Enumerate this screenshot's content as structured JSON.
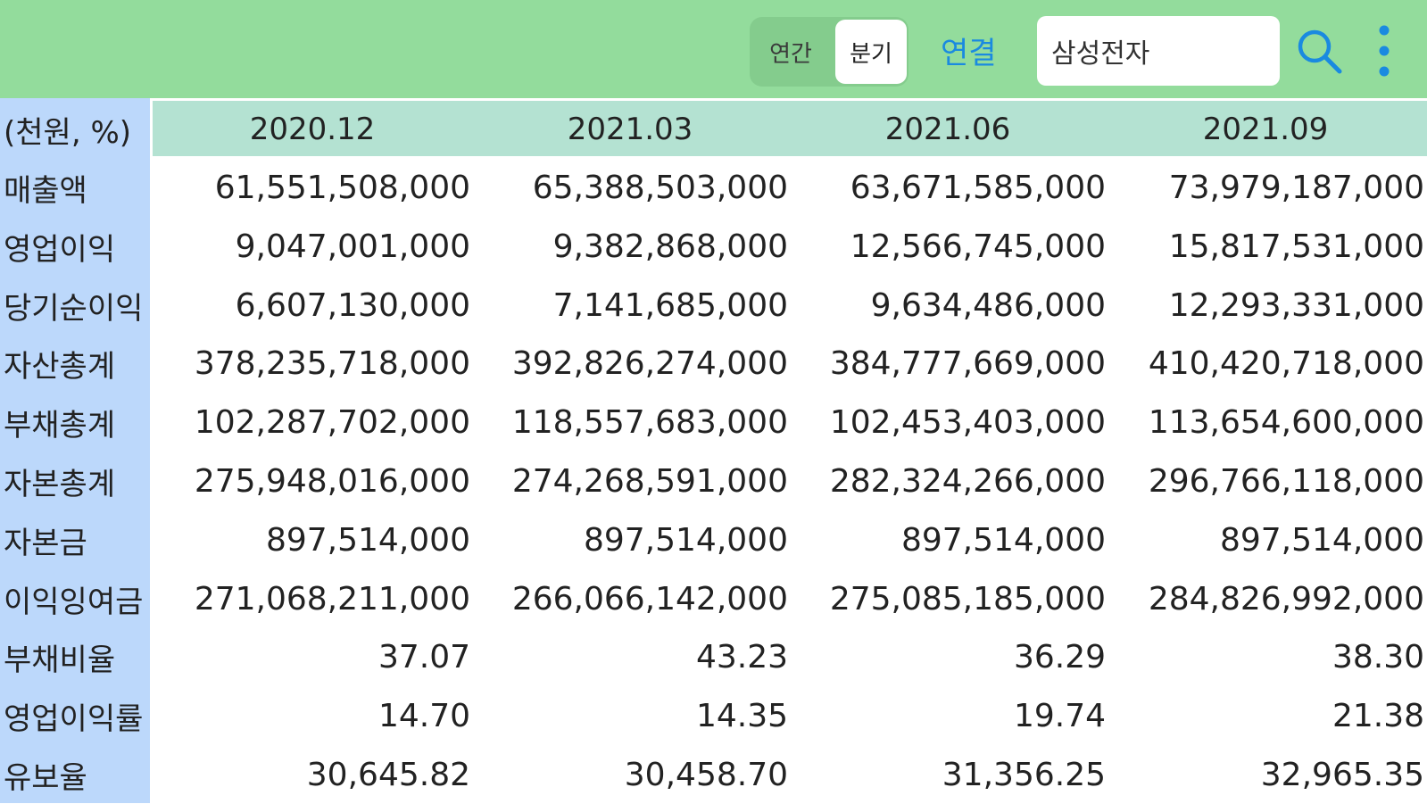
{
  "toolbar": {
    "annual_label": "연간",
    "quarter_label": "분기",
    "consolidated_label": "연결",
    "search_value": "삼성전자",
    "search_icon": "search-icon",
    "more_icon": "more-vertical-icon",
    "link_color": "#1a8ae0"
  },
  "table": {
    "unit_label": "(천원, %)",
    "periods": [
      "2020.12",
      "2021.03",
      "2021.06",
      "2021.09"
    ],
    "rows": [
      {
        "label": "매출액",
        "values": [
          "61,551,508,000",
          "65,388,503,000",
          "63,671,585,000",
          "73,979,187,000"
        ]
      },
      {
        "label": "영업이익",
        "values": [
          "9,047,001,000",
          "9,382,868,000",
          "12,566,745,000",
          "15,817,531,000"
        ]
      },
      {
        "label": "당기순이익",
        "values": [
          "6,607,130,000",
          "7,141,685,000",
          "9,634,486,000",
          "12,293,331,000"
        ]
      },
      {
        "label": "자산총계",
        "values": [
          "378,235,718,000",
          "392,826,274,000",
          "384,777,669,000",
          "410,420,718,000"
        ]
      },
      {
        "label": "부채총계",
        "values": [
          "102,287,702,000",
          "118,557,683,000",
          "102,453,403,000",
          "113,654,600,000"
        ]
      },
      {
        "label": "자본총계",
        "values": [
          "275,948,016,000",
          "274,268,591,000",
          "282,324,266,000",
          "296,766,118,000"
        ]
      },
      {
        "label": "자본금",
        "values": [
          "897,514,000",
          "897,514,000",
          "897,514,000",
          "897,514,000"
        ]
      },
      {
        "label": "이익잉여금",
        "values": [
          "271,068,211,000",
          "266,066,142,000",
          "275,085,185,000",
          "284,826,992,000"
        ]
      },
      {
        "label": "부채비율",
        "values": [
          "37.07",
          "43.23",
          "36.29",
          "38.30"
        ]
      },
      {
        "label": "영업이익률",
        "values": [
          "14.70",
          "14.35",
          "19.74",
          "21.38"
        ]
      },
      {
        "label": "유보율",
        "values": [
          "30,645.82",
          "30,458.70",
          "31,356.25",
          "32,965.35"
        ]
      }
    ]
  }
}
